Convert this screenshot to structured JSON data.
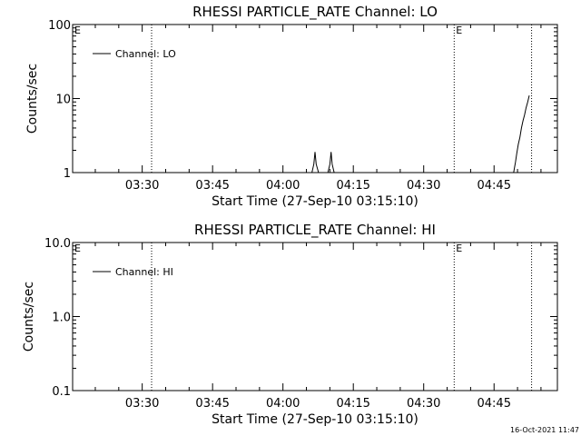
{
  "footer": {
    "timestamp": "16-Oct-2021 11:47"
  },
  "chart_data": [
    {
      "type": "line",
      "title": "RHESSI PARTICLE_RATE Channel: LO",
      "xlabel": "Start Time (27-Sep-10 03:15:10)",
      "ylabel": "Counts/sec",
      "yscale": "log",
      "ylim": [
        1,
        100
      ],
      "ytick_values": [
        1,
        10,
        100
      ],
      "ytick_labels": [
        "1",
        "10",
        "100"
      ],
      "xlim_seconds_from_start": [
        0,
        6200
      ],
      "xtick_seconds_from_start": [
        890,
        1790,
        2690,
        3590,
        4490,
        5390
      ],
      "xtick_labels": [
        "03:30",
        "03:45",
        "04:00",
        "04:15",
        "04:30",
        "04:45"
      ],
      "legend": {
        "placement": "top-left",
        "label": "Channel: LO"
      },
      "event_lines_seconds_from_start": [
        1010,
        4880,
        5870
      ],
      "event_markers": [
        {
          "text": "E",
          "at_seconds_from_start": 0
        },
        {
          "text": "E",
          "at_seconds_from_start": 4880
        }
      ],
      "series": [
        {
          "name": "Channel: LO",
          "x_seconds_from_start": [
            3060,
            3085,
            3100,
            3115,
            3145,
            3265,
            3290,
            3305,
            3320,
            3345,
            5640,
            5665,
            5680,
            5700,
            5720,
            5740,
            5760,
            5780,
            5800,
            5820,
            5840
          ],
          "y": [
            1,
            1.3,
            1.9,
            1.3,
            1,
            1,
            1.3,
            1.9,
            1.3,
            1,
            1,
            1.4,
            1.8,
            2.4,
            3.0,
            4.0,
            5.0,
            6.0,
            7.5,
            9.0,
            11.0
          ]
        }
      ]
    },
    {
      "type": "line",
      "title": "RHESSI PARTICLE_RATE Channel: HI",
      "xlabel": "Start Time (27-Sep-10 03:15:10)",
      "ylabel": "Counts/sec",
      "yscale": "log",
      "ylim": [
        0.1,
        10
      ],
      "ytick_values": [
        0.1,
        1,
        10
      ],
      "ytick_labels": [
        "0.1",
        "1.0",
        "10.0"
      ],
      "xlim_seconds_from_start": [
        0,
        6200
      ],
      "xtick_seconds_from_start": [
        890,
        1790,
        2690,
        3590,
        4490,
        5390
      ],
      "xtick_labels": [
        "03:30",
        "03:45",
        "04:00",
        "04:15",
        "04:30",
        "04:45"
      ],
      "legend": {
        "placement": "top-left",
        "label": "Channel: HI"
      },
      "event_lines_seconds_from_start": [
        1010,
        4880,
        5870
      ],
      "event_markers": [
        {
          "text": "E",
          "at_seconds_from_start": 0
        },
        {
          "text": "E",
          "at_seconds_from_start": 4880
        }
      ],
      "series": [
        {
          "name": "Channel: HI",
          "x_seconds_from_start": [],
          "y": []
        }
      ]
    }
  ]
}
